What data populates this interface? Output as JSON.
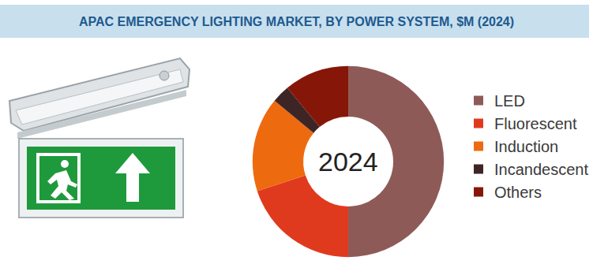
{
  "chart_data": {
    "type": "pie",
    "title": "APAC EMERGENCY LIGHTING MARKET, BY POWER SYSTEM, $M (2024)",
    "center_label": "2024",
    "categories": [
      "LED",
      "Fluorescent",
      "Induction",
      "Incandescent",
      "Others"
    ],
    "values": [
      50,
      20,
      16,
      3,
      11
    ],
    "colors": [
      "#8e5a57",
      "#e03a1e",
      "#ee6a0f",
      "#3d2526",
      "#861708"
    ],
    "legend": "right",
    "data_labels": false
  }
}
